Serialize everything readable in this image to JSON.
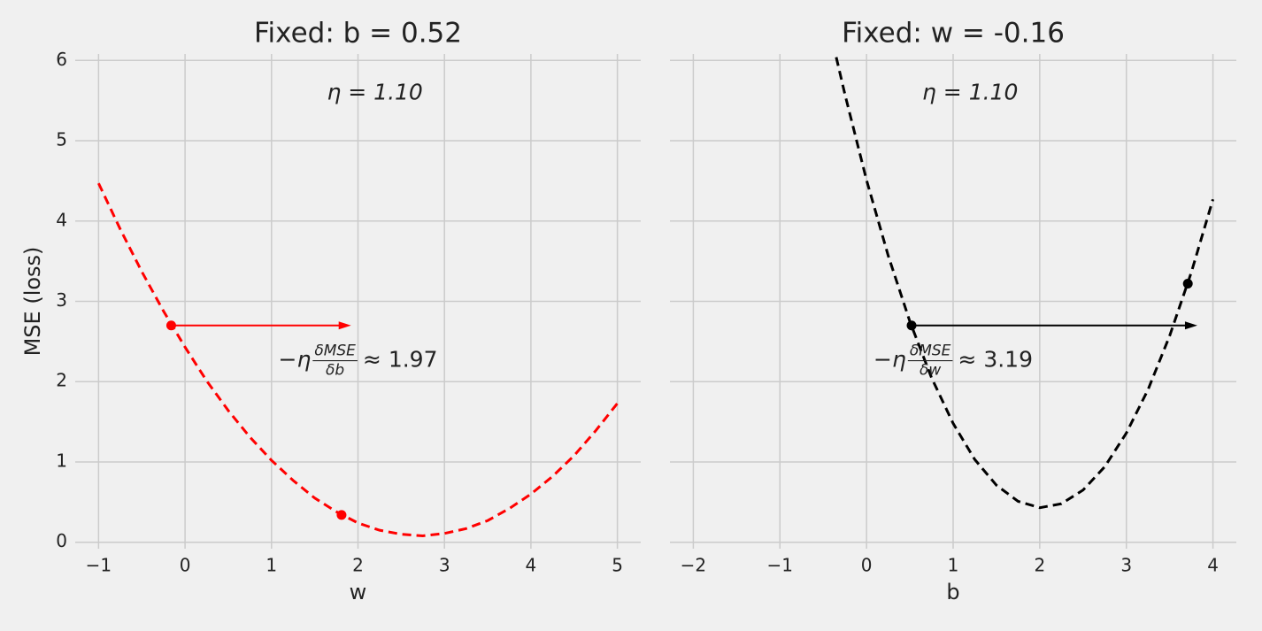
{
  "chart_data": [
    {
      "type": "line",
      "title": "Fixed: b = 0.52",
      "xlabel": "w",
      "ylabel": "MSE (loss)",
      "xlim": [
        -1.27,
        5.27
      ],
      "ylim": [
        -0.08,
        6.08
      ],
      "xticks": [
        {
          "value": -1,
          "label": "−1"
        },
        0,
        1,
        2,
        3,
        4,
        5
      ],
      "yticks": [
        0,
        1,
        2,
        3,
        4,
        5,
        6
      ],
      "grid": true,
      "series": [
        {
          "color": "#ff0000",
          "x": [
            -1,
            -0.75,
            -0.5,
            -0.25,
            0,
            0.25,
            0.5,
            0.75,
            1,
            1.25,
            1.5,
            1.75,
            2,
            2.25,
            2.5,
            2.75,
            3,
            3.25,
            3.5,
            3.75,
            4,
            4.25,
            4.5,
            4.75,
            5
          ],
          "values": [
            4.47,
            3.9,
            3.37,
            2.88,
            2.43,
            2.01,
            1.64,
            1.31,
            1.02,
            0.77,
            0.55,
            0.38,
            0.24,
            0.15,
            0.1,
            0.08,
            0.11,
            0.17,
            0.27,
            0.42,
            0.6,
            0.82,
            1.08,
            1.39,
            1.73
          ]
        }
      ],
      "points": {
        "x": [
          -0.16,
          1.81
        ],
        "y": [
          2.7,
          0.34
        ]
      },
      "arrow": {
        "x": [
          -0.16,
          1.92
        ],
        "y": 2.7
      },
      "eta_label": "η = 1.10",
      "step_label": {
        "prefix": "−η",
        "numerator": "δMSE",
        "denominator": "δb",
        "suffix": "≈ 1.97"
      }
    },
    {
      "type": "line",
      "title": "Fixed: w = -0.16",
      "xlabel": "b",
      "sharey": true,
      "xlim": [
        -2.27,
        4.27
      ],
      "ylim": [
        -0.08,
        6.08
      ],
      "xticks": [
        {
          "value": -2,
          "label": "−2"
        },
        {
          "value": -1,
          "label": "−1"
        },
        0,
        1,
        2,
        3,
        4
      ],
      "grid": true,
      "series": [
        {
          "color": "#000000",
          "x": [
            -0.35,
            -0.25,
            0,
            0.25,
            0.5,
            0.75,
            1,
            1.25,
            1.5,
            1.75,
            2,
            2.25,
            2.5,
            2.75,
            3,
            3.25,
            3.5,
            3.75,
            4
          ],
          "values": [
            6.04,
            5.58,
            4.51,
            3.57,
            2.75,
            2.05,
            1.48,
            1.03,
            0.71,
            0.51,
            0.43,
            0.48,
            0.65,
            0.94,
            1.36,
            1.9,
            2.57,
            3.36,
            4.27
          ]
        }
      ],
      "points": {
        "x": [
          0.52,
          3.71
        ],
        "y": [
          2.7,
          3.22
        ]
      },
      "arrow": {
        "x": [
          0.52,
          3.82
        ],
        "y": 2.7
      },
      "eta_label": "η = 1.10",
      "step_label": {
        "prefix": "−η",
        "numerator": "δMSE",
        "denominator": "δw",
        "suffix": "≈ 3.19"
      }
    }
  ]
}
